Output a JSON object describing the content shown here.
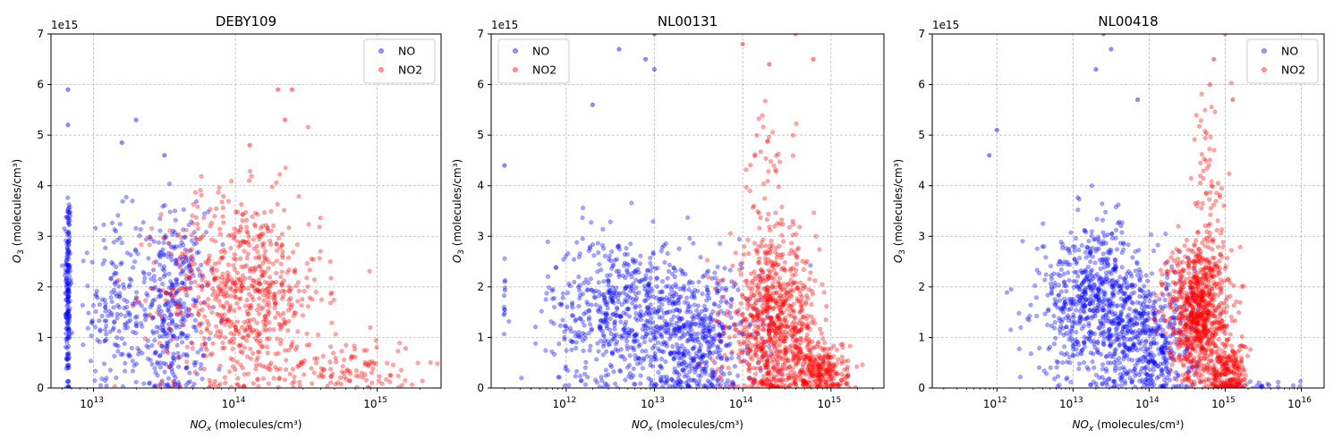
{
  "chart_data": [
    {
      "type": "scatter",
      "title": "DEBY109",
      "xlabel_main": "NO",
      "xlabel_sub": "x",
      "xlabel_rest": " (molecules/cm³)",
      "ylabel_main": "O",
      "ylabel_sub": "3",
      "ylabel_rest": " (molecules/cm³)",
      "x_scale": "log",
      "xlim_log10": [
        12.7,
        15.45
      ],
      "x_ticks_log10": [
        13,
        14,
        15
      ],
      "ylim": [
        0,
        7
      ],
      "y_ticks": [
        0,
        1,
        2,
        3,
        4,
        5,
        6,
        7
      ],
      "y_offset_label": "1e15",
      "grid": true,
      "legend_position": "top-right",
      "series": [
        {
          "name": "NO",
          "color": "#0000ff",
          "clusters": [
            {
              "x_center": 12.82,
              "x_spread": 0.01,
              "y_center": 1.9,
              "y_spread": 1.1,
              "count": 180
            },
            {
              "x_center": 13.15,
              "x_spread": 0.09,
              "y_center": 1.6,
              "y_spread": 0.9,
              "count": 160
            },
            {
              "x_center": 13.55,
              "x_spread": 0.12,
              "y_center": 1.5,
              "y_spread": 1.0,
              "count": 380
            }
          ],
          "peak_points": [
            [
              12.82,
              5.9
            ],
            [
              12.82,
              5.2
            ],
            [
              13.3,
              5.3
            ],
            [
              13.2,
              4.85
            ],
            [
              13.5,
              4.6
            ]
          ]
        },
        {
          "name": "NO2",
          "color": "#ff0000",
          "clusters": [
            {
              "x_center": 14.05,
              "x_spread": 0.28,
              "y_center": 1.9,
              "y_spread": 0.95,
              "count": 700
            },
            {
              "x_center": 14.8,
              "x_spread": 0.25,
              "y_center": 0.4,
              "y_spread": 0.3,
              "count": 120
            }
          ],
          "peak_points": [
            [
              14.3,
              5.9
            ],
            [
              14.4,
              5.9
            ],
            [
              14.35,
              5.3
            ],
            [
              14.1,
              4.8
            ]
          ]
        }
      ]
    },
    {
      "type": "scatter",
      "title": "NL00131",
      "xlabel_main": "NO",
      "xlabel_sub": "x",
      "xlabel_rest": " (molecules/cm³)",
      "ylabel_main": "O",
      "ylabel_sub": "3",
      "ylabel_rest": " (molecules/cm³)",
      "x_scale": "log",
      "xlim_log10": [
        11.15,
        15.6
      ],
      "x_ticks_log10": [
        12,
        13,
        14,
        15
      ],
      "ylim": [
        0,
        7
      ],
      "y_ticks": [
        0,
        1,
        2,
        3,
        4,
        5,
        6,
        7
      ],
      "y_offset_label": "1e15",
      "grid": true,
      "legend_position": "top-left",
      "series": [
        {
          "name": "NO",
          "color": "#0000ff",
          "clusters": [
            {
              "x_center": 11.3,
              "x_spread": 0.005,
              "y_center": 1.6,
              "y_spread": 0.4,
              "count": 12
            },
            {
              "x_center": 12.7,
              "x_spread": 0.45,
              "y_center": 1.5,
              "y_spread": 0.75,
              "count": 650
            },
            {
              "x_center": 13.5,
              "x_spread": 0.35,
              "y_center": 0.9,
              "y_spread": 0.7,
              "count": 450
            }
          ],
          "peak_points": [
            [
              12.6,
              6.7
            ],
            [
              13.0,
              7.0
            ],
            [
              13.0,
              6.3
            ],
            [
              12.9,
              6.5
            ],
            [
              11.3,
              4.4
            ],
            [
              12.3,
              5.6
            ]
          ]
        },
        {
          "name": "NO2",
          "color": "#ff0000",
          "clusters": [
            {
              "x_center": 14.35,
              "x_spread": 0.25,
              "y_center": 1.2,
              "y_spread": 0.8,
              "count": 800
            },
            {
              "x_center": 14.9,
              "x_spread": 0.15,
              "y_center": 0.35,
              "y_spread": 0.3,
              "count": 250
            },
            {
              "x_center": 14.3,
              "x_spread": 0.15,
              "y_center": 3.6,
              "y_spread": 1.0,
              "count": 60
            }
          ],
          "peak_points": [
            [
              14.6,
              7.0
            ],
            [
              14.8,
              6.5
            ],
            [
              14.0,
              6.8
            ],
            [
              14.3,
              6.4
            ]
          ]
        }
      ]
    },
    {
      "type": "scatter",
      "title": "NL00418",
      "xlabel_main": "NO",
      "xlabel_sub": "x",
      "xlabel_rest": " (molecules/cm³)",
      "ylabel_main": "O",
      "ylabel_sub": "3",
      "ylabel_rest": " (molecules/cm³)",
      "x_scale": "log",
      "xlim_log10": [
        11.15,
        16.3
      ],
      "x_ticks_log10": [
        12,
        13,
        14,
        15,
        16
      ],
      "ylim": [
        0,
        7
      ],
      "y_ticks": [
        0,
        1,
        2,
        3,
        4,
        5,
        6,
        7
      ],
      "y_offset_label": "1e15",
      "grid": true,
      "legend_position": "top-right",
      "series": [
        {
          "name": "NO",
          "color": "#0000ff",
          "clusters": [
            {
              "x_center": 13.3,
              "x_spread": 0.38,
              "y_center": 1.7,
              "y_spread": 0.75,
              "count": 700
            },
            {
              "x_center": 14.0,
              "x_spread": 0.3,
              "y_center": 0.9,
              "y_spread": 0.65,
              "count": 420
            },
            {
              "x_center": 15.4,
              "x_spread": 0.35,
              "y_center": 0.05,
              "y_spread": 0.05,
              "count": 30
            }
          ],
          "peak_points": [
            [
              13.4,
              7.0
            ],
            [
              13.5,
              6.7
            ],
            [
              13.3,
              6.3
            ],
            [
              13.85,
              5.7
            ],
            [
              12.0,
              5.1
            ],
            [
              11.9,
              4.6
            ]
          ]
        },
        {
          "name": "NO2",
          "color": "#ff0000",
          "clusters": [
            {
              "x_center": 14.65,
              "x_spread": 0.2,
              "y_center": 1.5,
              "y_spread": 0.7,
              "count": 850
            },
            {
              "x_center": 15.05,
              "x_spread": 0.12,
              "y_center": 0.3,
              "y_spread": 0.3,
              "count": 200
            },
            {
              "x_center": 14.8,
              "x_spread": 0.12,
              "y_center": 3.9,
              "y_spread": 1.0,
              "count": 70
            }
          ],
          "peak_points": [
            [
              15.0,
              7.0
            ],
            [
              14.85,
              6.5
            ],
            [
              14.8,
              6.0
            ],
            [
              15.1,
              5.7
            ]
          ]
        }
      ]
    }
  ]
}
